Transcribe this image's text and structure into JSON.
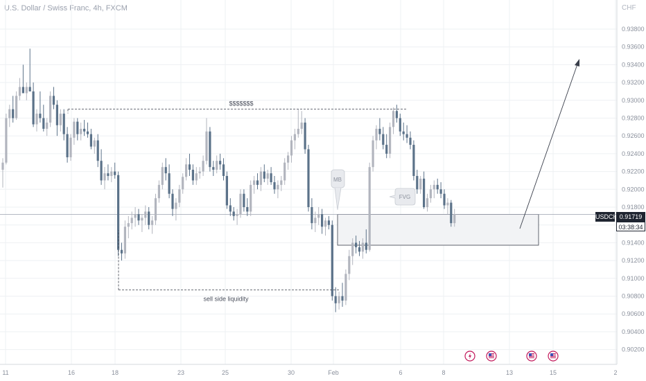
{
  "header": {
    "title": "U.S. Dollar / Swiss Franc, 4h, FXCM",
    "currency": "CHF"
  },
  "price_tag": {
    "symbol": "USDCHF",
    "price": "0.91719",
    "countdown": "03:38:34"
  },
  "colors": {
    "up": "#b2b5be",
    "down": "#5b7289",
    "grid": "#eef0f3",
    "zone_fill": "#f2f3f5",
    "text": "#4a4f5c"
  },
  "annotations": {
    "top_label": "$$$$$$$",
    "bottom_label": "sell side liquidity",
    "mb_label": "MB",
    "fvg_label": "FVG"
  },
  "event_icons": [
    "lightning-icon",
    "us-flag-icon",
    "us-flag-icon",
    "us-flag-icon"
  ],
  "chart_data": {
    "type": "candlestick",
    "title": "U.S. Dollar / Swiss Franc, 4h, FXCM",
    "ylim": [
      0.9,
      0.9405
    ],
    "y_ticks": [
      "0.93800",
      "0.93600",
      "0.93400",
      "0.93200",
      "0.93000",
      "0.92800",
      "0.92600",
      "0.92400",
      "0.92200",
      "0.92000",
      "0.91800",
      "0.91600",
      "0.91400",
      "0.91200",
      "0.91000",
      "0.90800",
      "0.90600",
      "0.90400",
      "0.90200"
    ],
    "x_ticks": [
      "11",
      "16",
      "18",
      "23",
      "25",
      "30",
      "Feb",
      "6",
      "8",
      "13",
      "15",
      "2"
    ],
    "current_price": 0.91719,
    "levels": {
      "buy_side_liquidity": 0.929,
      "sell_side_liquidity": 0.9087
    },
    "zone": {
      "top": 0.91719,
      "bottom": 0.91372
    },
    "candles": [
      [
        0.9222,
        0.9235,
        0.9202,
        0.923
      ],
      [
        0.923,
        0.9285,
        0.9228,
        0.928
      ],
      [
        0.928,
        0.9295,
        0.927,
        0.929
      ],
      [
        0.929,
        0.9305,
        0.9275,
        0.928
      ],
      [
        0.928,
        0.931,
        0.9278,
        0.9305
      ],
      [
        0.9305,
        0.9325,
        0.93,
        0.9315
      ],
      [
        0.9315,
        0.934,
        0.9312,
        0.9308
      ],
      [
        0.9308,
        0.932,
        0.93,
        0.9315
      ],
      [
        0.9315,
        0.9358,
        0.931,
        0.931
      ],
      [
        0.931,
        0.932,
        0.927,
        0.9273
      ],
      [
        0.9273,
        0.929,
        0.9265,
        0.9285
      ],
      [
        0.9285,
        0.931,
        0.9275,
        0.928
      ],
      [
        0.928,
        0.9295,
        0.9265,
        0.9268
      ],
      [
        0.9268,
        0.928,
        0.926,
        0.9275
      ],
      [
        0.9275,
        0.931,
        0.927,
        0.9305
      ],
      [
        0.9305,
        0.9315,
        0.929,
        0.9295
      ],
      [
        0.9295,
        0.93,
        0.926,
        0.9272
      ],
      [
        0.9272,
        0.929,
        0.9265,
        0.9285
      ],
      [
        0.9285,
        0.929,
        0.9255,
        0.9262
      ],
      [
        0.9262,
        0.927,
        0.923,
        0.9236
      ],
      [
        0.9236,
        0.9262,
        0.9232,
        0.9258
      ],
      [
        0.9258,
        0.928,
        0.925,
        0.9276
      ],
      [
        0.9276,
        0.928,
        0.9255,
        0.9262
      ],
      [
        0.9262,
        0.9275,
        0.9255,
        0.9268
      ],
      [
        0.9268,
        0.9278,
        0.926,
        0.9265
      ],
      [
        0.9265,
        0.9275,
        0.9258,
        0.9262
      ],
      [
        0.9262,
        0.9268,
        0.9245,
        0.9248
      ],
      [
        0.9248,
        0.9258,
        0.924,
        0.9255
      ],
      [
        0.9255,
        0.9262,
        0.9225,
        0.9232
      ],
      [
        0.9232,
        0.9245,
        0.9205,
        0.921
      ],
      [
        0.921,
        0.9225,
        0.92,
        0.9218
      ],
      [
        0.9218,
        0.9228,
        0.921,
        0.9215
      ],
      [
        0.9215,
        0.9225,
        0.9208,
        0.922
      ],
      [
        0.922,
        0.923,
        0.9212,
        0.9216
      ],
      [
        0.9216,
        0.922,
        0.9125,
        0.9132
      ],
      [
        0.9132,
        0.914,
        0.912,
        0.9128
      ],
      [
        0.9128,
        0.9165,
        0.9122,
        0.9158
      ],
      [
        0.9158,
        0.917,
        0.9145,
        0.9162
      ],
      [
        0.9162,
        0.9175,
        0.9155,
        0.9168
      ],
      [
        0.9168,
        0.918,
        0.9158,
        0.9172
      ],
      [
        0.9172,
        0.9178,
        0.916,
        0.9165
      ],
      [
        0.9165,
        0.9172,
        0.9152,
        0.9168
      ],
      [
        0.9168,
        0.9182,
        0.916,
        0.9175
      ],
      [
        0.9175,
        0.918,
        0.9155,
        0.916
      ],
      [
        0.916,
        0.917,
        0.915,
        0.9165
      ],
      [
        0.9165,
        0.9195,
        0.916,
        0.919
      ],
      [
        0.919,
        0.921,
        0.9185,
        0.9205
      ],
      [
        0.9205,
        0.923,
        0.92,
        0.9225
      ],
      [
        0.9225,
        0.9235,
        0.921,
        0.9218
      ],
      [
        0.9218,
        0.9228,
        0.919,
        0.9195
      ],
      [
        0.9195,
        0.92,
        0.917,
        0.9178
      ],
      [
        0.9178,
        0.919,
        0.9165,
        0.9185
      ],
      [
        0.9185,
        0.9205,
        0.918,
        0.92
      ],
      [
        0.92,
        0.9218,
        0.9195,
        0.9214
      ],
      [
        0.9214,
        0.9235,
        0.921,
        0.9228
      ],
      [
        0.9228,
        0.924,
        0.9215,
        0.9222
      ],
      [
        0.9222,
        0.9228,
        0.9205,
        0.921
      ],
      [
        0.921,
        0.9225,
        0.9205,
        0.9218
      ],
      [
        0.9218,
        0.9225,
        0.9212,
        0.922
      ],
      [
        0.922,
        0.9238,
        0.9215,
        0.9232
      ],
      [
        0.9232,
        0.928,
        0.9228,
        0.9265
      ],
      [
        0.9265,
        0.927,
        0.922,
        0.9225
      ],
      [
        0.9225,
        0.9232,
        0.9215,
        0.9222
      ],
      [
        0.9222,
        0.9238,
        0.9218,
        0.9232
      ],
      [
        0.9232,
        0.924,
        0.9222,
        0.9228
      ],
      [
        0.9228,
        0.9235,
        0.921,
        0.9215
      ],
      [
        0.9215,
        0.922,
        0.9178,
        0.9182
      ],
      [
        0.9182,
        0.919,
        0.917,
        0.9175
      ],
      [
        0.9175,
        0.918,
        0.9165,
        0.917
      ],
      [
        0.917,
        0.9178,
        0.916,
        0.9172
      ],
      [
        0.9172,
        0.92,
        0.9168,
        0.9195
      ],
      [
        0.9195,
        0.92,
        0.9175,
        0.918
      ],
      [
        0.918,
        0.919,
        0.917,
        0.9175
      ],
      [
        0.9175,
        0.921,
        0.917,
        0.9205
      ],
      [
        0.9205,
        0.9215,
        0.9195,
        0.921
      ],
      [
        0.921,
        0.9218,
        0.92,
        0.9205
      ],
      [
        0.9205,
        0.9225,
        0.9198,
        0.922
      ],
      [
        0.922,
        0.9228,
        0.9208,
        0.9212
      ],
      [
        0.9212,
        0.9222,
        0.9205,
        0.9218
      ],
      [
        0.9218,
        0.9225,
        0.9205,
        0.9208
      ],
      [
        0.9208,
        0.9215,
        0.9195,
        0.92
      ],
      [
        0.92,
        0.921,
        0.919,
        0.9205
      ],
      [
        0.9205,
        0.9215,
        0.9198,
        0.921
      ],
      [
        0.921,
        0.9235,
        0.9205,
        0.923
      ],
      [
        0.923,
        0.9242,
        0.9222,
        0.9238
      ],
      [
        0.9238,
        0.926,
        0.923,
        0.9255
      ],
      [
        0.9255,
        0.9268,
        0.9245,
        0.9262
      ],
      [
        0.9262,
        0.929,
        0.9258,
        0.9268
      ],
      [
        0.9268,
        0.9288,
        0.9262,
        0.9275
      ],
      [
        0.9275,
        0.928,
        0.924,
        0.9245
      ],
      [
        0.9245,
        0.925,
        0.9175,
        0.918
      ],
      [
        0.918,
        0.919,
        0.9155,
        0.9162
      ],
      [
        0.9162,
        0.9175,
        0.9152,
        0.9168
      ],
      [
        0.9168,
        0.918,
        0.916,
        0.9172
      ],
      [
        0.9172,
        0.9178,
        0.915,
        0.9158
      ],
      [
        0.9158,
        0.9168,
        0.9148,
        0.9165
      ],
      [
        0.9165,
        0.917,
        0.9155,
        0.916
      ],
      [
        0.916,
        0.9165,
        0.9075,
        0.908
      ],
      [
        0.908,
        0.909,
        0.9062,
        0.9072
      ],
      [
        0.9072,
        0.9085,
        0.9065,
        0.908
      ],
      [
        0.908,
        0.9095,
        0.9068,
        0.9075
      ],
      [
        0.9075,
        0.911,
        0.907,
        0.9105
      ],
      [
        0.9105,
        0.9132,
        0.9098,
        0.9125
      ],
      [
        0.9125,
        0.9145,
        0.9115,
        0.914
      ],
      [
        0.914,
        0.9148,
        0.9128,
        0.9135
      ],
      [
        0.9135,
        0.9142,
        0.9125,
        0.913
      ],
      [
        0.913,
        0.9145,
        0.9122,
        0.914
      ],
      [
        0.914,
        0.9155,
        0.9128,
        0.9132
      ],
      [
        0.9132,
        0.923,
        0.913,
        0.9225
      ],
      [
        0.9225,
        0.926,
        0.922,
        0.9255
      ],
      [
        0.9255,
        0.9272,
        0.9245,
        0.9268
      ],
      [
        0.9268,
        0.928,
        0.9255,
        0.9262
      ],
      [
        0.9262,
        0.927,
        0.9245,
        0.925
      ],
      [
        0.925,
        0.9262,
        0.9235,
        0.924
      ],
      [
        0.924,
        0.9275,
        0.9235,
        0.927
      ],
      [
        0.927,
        0.9292,
        0.9262,
        0.9288
      ],
      [
        0.9288,
        0.9295,
        0.9275,
        0.928
      ],
      [
        0.928,
        0.9285,
        0.926,
        0.9265
      ],
      [
        0.9265,
        0.9275,
        0.9255,
        0.9262
      ],
      [
        0.9262,
        0.9272,
        0.9252,
        0.9258
      ],
      [
        0.9258,
        0.9265,
        0.9245,
        0.925
      ],
      [
        0.925,
        0.9255,
        0.921,
        0.9215
      ],
      [
        0.9215,
        0.9222,
        0.9195,
        0.92
      ],
      [
        0.92,
        0.9215,
        0.9195,
        0.9212
      ],
      [
        0.9212,
        0.922,
        0.9178,
        0.918
      ],
      [
        0.918,
        0.9195,
        0.9175,
        0.919
      ],
      [
        0.919,
        0.9205,
        0.9185,
        0.92
      ],
      [
        0.92,
        0.921,
        0.919,
        0.9205
      ],
      [
        0.9205,
        0.9212,
        0.9195,
        0.92
      ],
      [
        0.92,
        0.9208,
        0.919,
        0.9195
      ],
      [
        0.9195,
        0.92,
        0.9178,
        0.9182
      ],
      [
        0.9182,
        0.919,
        0.9172,
        0.9185
      ],
      [
        0.9185,
        0.9188,
        0.9158,
        0.9162
      ],
      [
        0.9162,
        0.9178,
        0.9158,
        0.9172
      ]
    ]
  }
}
